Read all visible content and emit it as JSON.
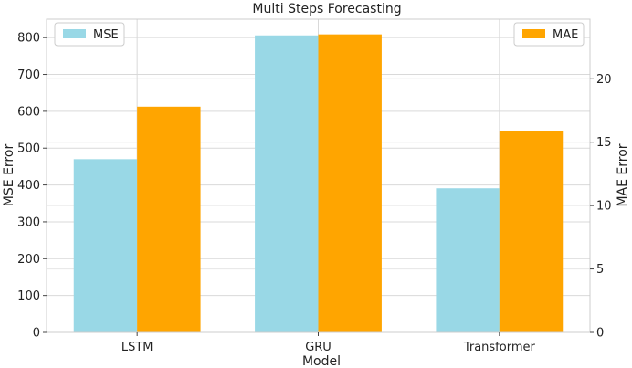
{
  "chart_data": {
    "type": "bar",
    "title": "Multi Steps Forecasting",
    "xlabel": "Model",
    "categories": [
      "LSTM",
      "GRU",
      "Transformer"
    ],
    "series": [
      {
        "name": "MSE",
        "axis": "left",
        "color": "#99d8e6",
        "values": [
          470,
          806,
          391
        ]
      },
      {
        "name": "MAE",
        "axis": "right",
        "color": "#ffa500",
        "values": [
          17.8,
          23.5,
          15.9
        ]
      }
    ],
    "y_left": {
      "label": "MSE Error",
      "ylim": [
        0,
        850
      ],
      "ticks": [
        0,
        100,
        200,
        300,
        400,
        500,
        600,
        700,
        800
      ]
    },
    "y_right": {
      "label": "MAE Error",
      "ylim": [
        0,
        24.7
      ],
      "ticks": [
        0,
        5,
        10,
        15,
        20
      ]
    },
    "grid": true,
    "legends": {
      "left_series": "top-left",
      "right_series": "top-right"
    }
  }
}
